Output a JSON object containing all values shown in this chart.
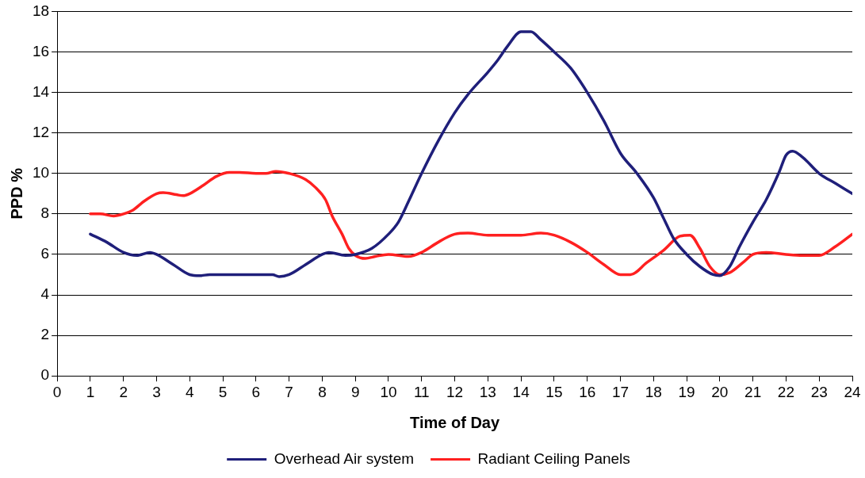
{
  "chart_data": {
    "type": "line",
    "xlabel": "Time of Day",
    "ylabel": "PPD %",
    "xlim": [
      0,
      24
    ],
    "xticks": [
      0,
      1,
      2,
      3,
      4,
      5,
      6,
      7,
      8,
      9,
      10,
      11,
      12,
      13,
      14,
      15,
      16,
      17,
      18,
      19,
      20,
      21,
      22,
      23,
      24
    ],
    "ylim": [
      0,
      18
    ],
    "yticks": [
      0,
      2,
      4,
      6,
      8,
      10,
      12,
      14,
      16,
      18
    ],
    "grid": "y",
    "legend": "bottom",
    "marker": "none",
    "line_style": "solid",
    "series": [
      {
        "name": "Overhead Air system",
        "color": "#1f1f7a",
        "x": [
          1,
          1.5,
          2,
          2.4,
          2.8,
          3,
          3.5,
          4,
          4.3,
          4.6,
          5,
          6,
          6.5,
          6.7,
          7,
          7.5,
          8,
          8.2,
          8.7,
          9,
          9.5,
          10,
          10.3,
          10.6,
          11,
          11.5,
          12,
          12.4,
          13,
          13.3,
          13.6,
          14,
          14.3,
          14.6,
          15,
          15.5,
          16,
          16.5,
          17,
          17.5,
          18,
          18.3,
          18.6,
          19,
          19.4,
          19.8,
          20,
          20.3,
          20.6,
          21,
          21.4,
          21.8,
          22,
          22.2,
          22.5,
          23,
          23.5,
          24
        ],
        "values": [
          7,
          6.6,
          6.1,
          5.95,
          6.1,
          6,
          5.5,
          5,
          4.95,
          5,
          5,
          5,
          5,
          4.9,
          5,
          5.5,
          6,
          6.1,
          5.95,
          6,
          6.3,
          7,
          7.6,
          8.6,
          10,
          11.6,
          13,
          13.9,
          15,
          15.6,
          16.3,
          17,
          17,
          16.6,
          16,
          15.2,
          14,
          12.6,
          11,
          10,
          8.8,
          7.8,
          6.8,
          6,
          5.4,
          5,
          4.95,
          5.4,
          6.4,
          7.6,
          8.7,
          10.1,
          10.9,
          11.1,
          10.8,
          10,
          9.5,
          9
        ]
      },
      {
        "name": "Radiant Ceiling Panels",
        "color": "#ff2020",
        "x": [
          1,
          1.3,
          1.7,
          2,
          2.3,
          2.6,
          3,
          3.2,
          3.6,
          3.8,
          4,
          4.4,
          4.8,
          5.2,
          5.5,
          6,
          6.3,
          6.6,
          7,
          7.5,
          7.8,
          8.1,
          8.3,
          8.6,
          8.8,
          9,
          9.3,
          9.6,
          10,
          10.6,
          11,
          11.5,
          12,
          12.4,
          13,
          14,
          14.6,
          15,
          15.5,
          16,
          16.5,
          17,
          17.3,
          17.8,
          18.3,
          18.8,
          19.1,
          19.4,
          19.7,
          20,
          20.3,
          20.7,
          21,
          21.4,
          22,
          22.5,
          23,
          23.5,
          24
        ],
        "values": [
          8,
          8,
          7.9,
          8,
          8.2,
          8.6,
          9,
          9.05,
          8.95,
          8.9,
          9,
          9.4,
          9.85,
          10.05,
          10.05,
          10,
          10,
          10.1,
          10,
          9.7,
          9.3,
          8.7,
          7.9,
          7,
          6.3,
          5.95,
          5.8,
          5.9,
          6,
          5.9,
          6.1,
          6.6,
          7,
          7.05,
          6.95,
          6.95,
          7.05,
          6.95,
          6.6,
          6.1,
          5.5,
          5,
          5,
          5.6,
          6.2,
          6.9,
          6.95,
          6.3,
          5.4,
          5,
          5.1,
          5.6,
          6,
          6.1,
          6,
          5.95,
          5.95,
          6.4,
          7
        ]
      }
    ]
  }
}
